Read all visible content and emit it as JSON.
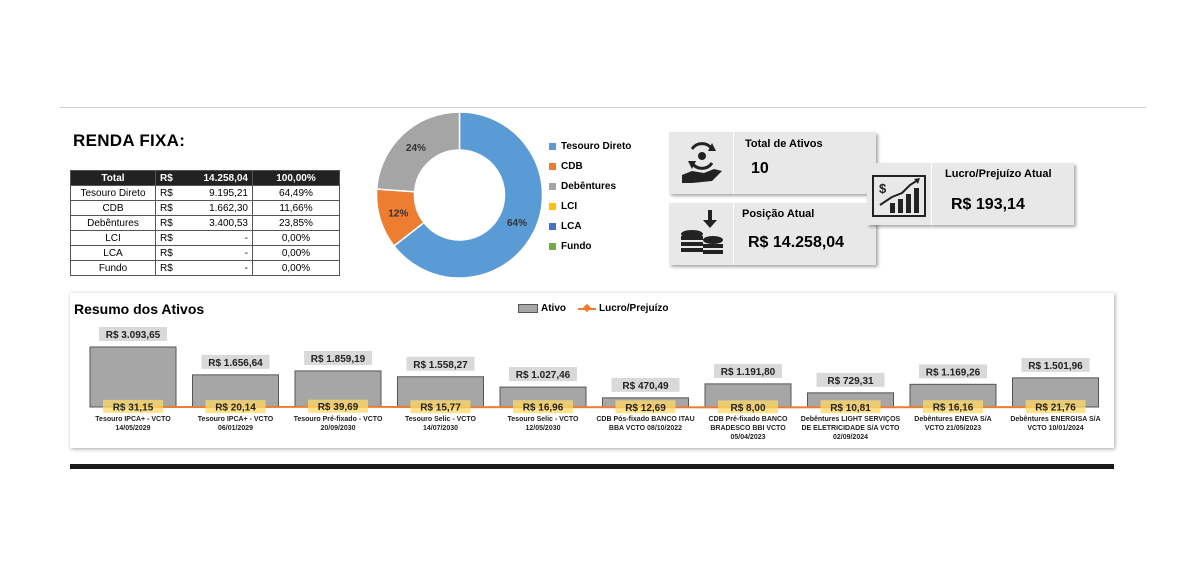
{
  "renda_fixa": {
    "title": "RENDA FIXA:",
    "header": {
      "label": "Total",
      "currency": "R$",
      "value": "14.258,04",
      "pct": "100,00%"
    },
    "rows": [
      {
        "name": "Tesouro Direto",
        "currency": "R$",
        "value": "9.195,21",
        "pct": "64,49%"
      },
      {
        "name": "CDB",
        "currency": "R$",
        "value": "1.662,30",
        "pct": "11,66%"
      },
      {
        "name": "Debêntures",
        "currency": "R$",
        "value": "3.400,53",
        "pct": "23,85%"
      },
      {
        "name": "LCI",
        "currency": "R$",
        "value": "-",
        "pct": "0,00%"
      },
      {
        "name": "LCA",
        "currency": "R$",
        "value": "-",
        "pct": "0,00%"
      },
      {
        "name": "Fundo",
        "currency": "R$",
        "value": "-",
        "pct": "0,00%"
      }
    ]
  },
  "cards": {
    "total_ativos": {
      "label": "Total de Ativos",
      "value": "10"
    },
    "posicao_atual": {
      "label": "Posição Atual",
      "value": "R$ 14.258,04"
    },
    "lucro_prejuizo": {
      "label": "Lucro/Prejuízo Atual",
      "value": "R$ 193,14"
    }
  },
  "chart_data": [
    {
      "type": "pie",
      "donut": true,
      "categories": [
        "Tesouro Direto",
        "CDB",
        "Debêntures",
        "LCI",
        "LCA",
        "Fundo"
      ],
      "values": [
        64.49,
        11.66,
        23.85,
        0,
        0,
        0
      ],
      "data_labels": [
        "64%",
        "12%",
        "24%",
        "",
        "",
        ""
      ],
      "colors": [
        "#5b9bd5",
        "#ed7d31",
        "#a5a5a5",
        "#ffc000",
        "#4472c4",
        "#70ad47"
      ],
      "legend": "right"
    },
    {
      "type": "bar",
      "title": "Resumo dos Ativos",
      "legend": "top",
      "legend_labels": [
        "Ativo",
        "Lucro/Prejuízo"
      ],
      "categories": [
        "Tesouro IPCA+ - VCTO 14/05/2029",
        "Tesouro IPCA+ - VCTO 06/01/2029",
        "Tesouro Pré-fixado - VCTO 20/09/2030",
        "Tesouro Selic - VCTO 14/07/2030",
        "Tesouro Selic - VCTO 12/05/2030",
        "CDB Pós-fixado BANCO ITAU BBA VCTO 08/10/2022",
        "CDB Pré-fixado BANCO BRADESCO BBI VCTO 05/04/2023",
        "Debêntures LIGHT SERVIÇOS DE ELETRICIDADE S/A VCTO 02/09/2024",
        "Debêntures ENEVA S/A VCTO 21/05/2023",
        "Debêntures ENERGISA S/A VCTO 10/01/2024"
      ],
      "category_lines": [
        [
          "Tesouro IPCA+ -  VCTO",
          "14/05/2029"
        ],
        [
          "Tesouro IPCA+ -  VCTO",
          "06/01/2029"
        ],
        [
          "Tesouro Pré-fixado -  VCTO",
          "20/09/2030"
        ],
        [
          "Tesouro Selic -  VCTO",
          "14/07/2030"
        ],
        [
          "Tesouro Selic -  VCTO",
          "12/05/2030"
        ],
        [
          "CDB Pós-fixado BANCO ITAU",
          "BBA  VCTO 08/10/2022"
        ],
        [
          "CDB Pré-fixado BANCO",
          "BRADESCO BBI  VCTO",
          "05/04/2023"
        ],
        [
          "Debêntures LIGHT SERVIÇOS",
          "DE ELETRICIDADE S/A  VCTO",
          "02/09/2024"
        ],
        [
          "Debêntures ENEVA S/A",
          "VCTO 21/05/2023"
        ],
        [
          "Debêntures ENERGISA S/A",
          "VCTO 10/01/2024"
        ]
      ],
      "series": [
        {
          "name": "Ativo",
          "values": [
            3093.65,
            1656.64,
            1859.19,
            1558.27,
            1027.46,
            470.49,
            1191.8,
            729.31,
            1169.26,
            1501.96
          ],
          "labels": [
            "R$ 3.093,65",
            "R$ 1.656,64",
            "R$ 1.859,19",
            "R$ 1.558,27",
            "R$ 1.027,46",
            "R$ 470,49",
            "R$ 1.191,80",
            "R$ 729,31",
            "R$ 1.169,26",
            "R$ 1.501,96"
          ],
          "color": "#a6a6a6"
        },
        {
          "name": "Lucro/Prejuízo",
          "values": [
            31.15,
            20.14,
            39.69,
            15.77,
            16.96,
            12.69,
            8.0,
            10.81,
            16.16,
            21.76
          ],
          "labels": [
            "R$ 31,15",
            "R$ 20,14",
            "R$ 39,69",
            "R$ 15,77",
            "R$ 16,96",
            "R$ 12,69",
            "R$ 8,00",
            "R$ 10,81",
            "R$ 16,16",
            "R$ 21,76"
          ],
          "color": "#ed7d31"
        }
      ]
    }
  ]
}
